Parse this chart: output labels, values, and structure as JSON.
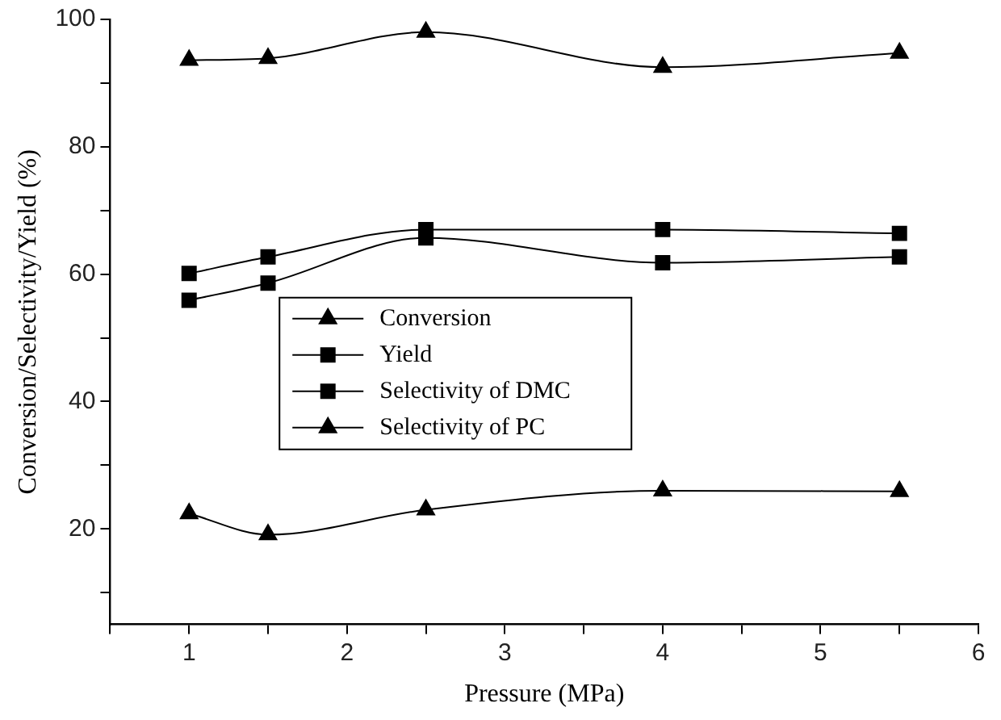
{
  "chart_data": {
    "type": "line",
    "xlabel": "Pressure (MPa)",
    "ylabel": "Conversion/Selectivity/Yield (%)",
    "x": [
      1,
      1.5,
      2.5,
      4,
      5.5
    ],
    "series": [
      {
        "name": "Conversion",
        "color": "#000000",
        "marker": "triangle",
        "values": [
          93.6,
          93.9,
          98,
          92.5,
          94.7
        ]
      },
      {
        "name": "Yield",
        "color": "#000000",
        "marker": "square",
        "values": [
          55.9,
          58.6,
          65.7,
          61.8,
          62.7
        ]
      },
      {
        "name": "Selectivity of DMC",
        "color": "#000000",
        "marker": "square",
        "values": [
          60.1,
          62.7,
          67,
          67,
          66.4
        ]
      },
      {
        "name": "Selectivity of PC",
        "color": "#000000",
        "marker": "triangle",
        "values": [
          22.4,
          19.1,
          23,
          26,
          25.9
        ]
      }
    ],
    "xlim": [
      0.5,
      6
    ],
    "xticks": [
      {
        "value": 0.5,
        "label": null
      },
      1,
      {
        "value": 1.5,
        "label": null
      },
      2,
      {
        "value": 2.5,
        "label": null
      },
      3,
      {
        "value": 3.5,
        "label": null
      },
      4,
      {
        "value": 4.5,
        "label": null
      },
      5,
      {
        "value": 5.5,
        "label": null
      },
      6
    ],
    "ylim": [
      5,
      100
    ],
    "yticks": [
      {
        "value": 10,
        "label": null
      },
      20,
      {
        "value": 30,
        "label": null
      },
      40,
      {
        "value": 50,
        "label": null
      },
      60,
      {
        "value": 70,
        "label": null
      },
      80,
      {
        "value": 90,
        "label": null
      },
      100
    ],
    "grid": false,
    "legend": "center",
    "line_style": "solid"
  }
}
